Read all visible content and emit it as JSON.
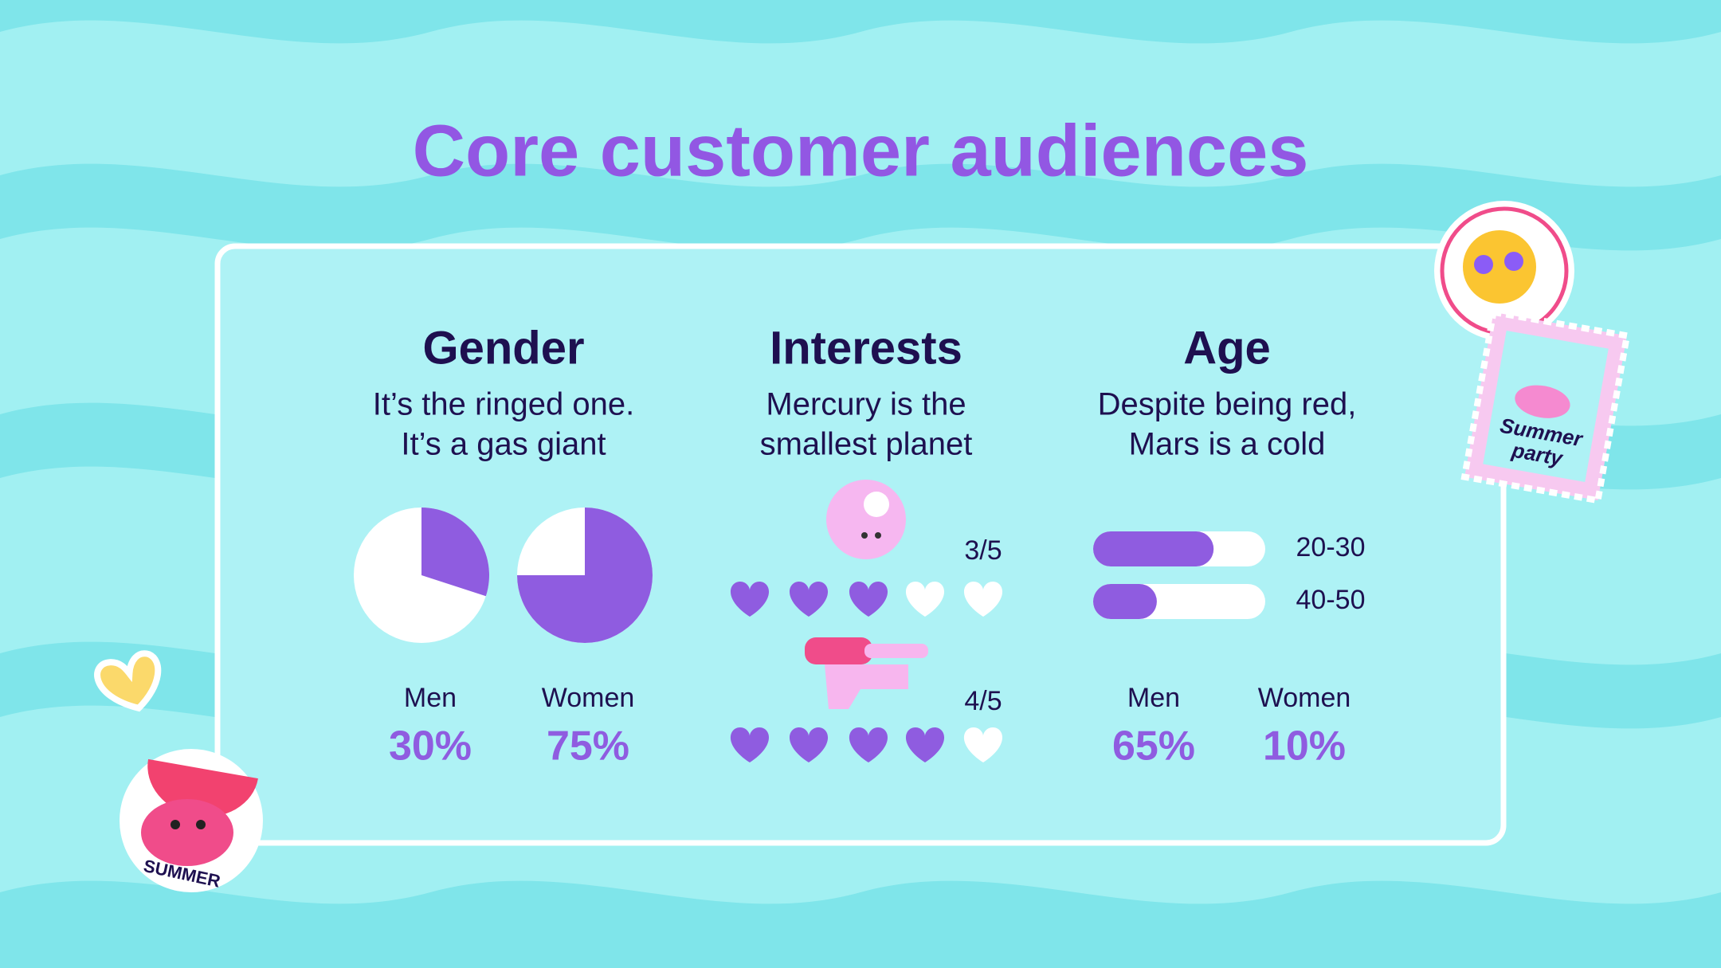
{
  "title": "Core customer audiences",
  "gender": {
    "heading": "Gender",
    "description": [
      "It’s the ringed one.",
      "It’s a gas giant"
    ],
    "items": [
      {
        "label": "Men",
        "value": 30,
        "value_label": "30%"
      },
      {
        "label": "Women",
        "value": 75,
        "value_label": "75%"
      }
    ]
  },
  "interests": {
    "heading": "Interests",
    "description": [
      "Mercury is the",
      "smallest planet"
    ],
    "ratings": [
      {
        "value": 3,
        "max": 5,
        "label": "3/5"
      },
      {
        "value": 4,
        "max": 5,
        "label": "4/5"
      }
    ]
  },
  "age": {
    "heading": "Age",
    "description": [
      "Despite being red,",
      "Mars is a cold"
    ],
    "xlim": [
      0,
      100
    ],
    "bars": [
      {
        "label": "20-30",
        "value": 70
      },
      {
        "label": "40-50",
        "value": 37
      }
    ],
    "items": [
      {
        "label": "Men",
        "value_label": "65%"
      },
      {
        "label": "Women",
        "value_label": "10%"
      }
    ]
  },
  "stickers": {
    "crab": "SUMMER",
    "stamp": [
      "Summer",
      "party"
    ]
  }
}
